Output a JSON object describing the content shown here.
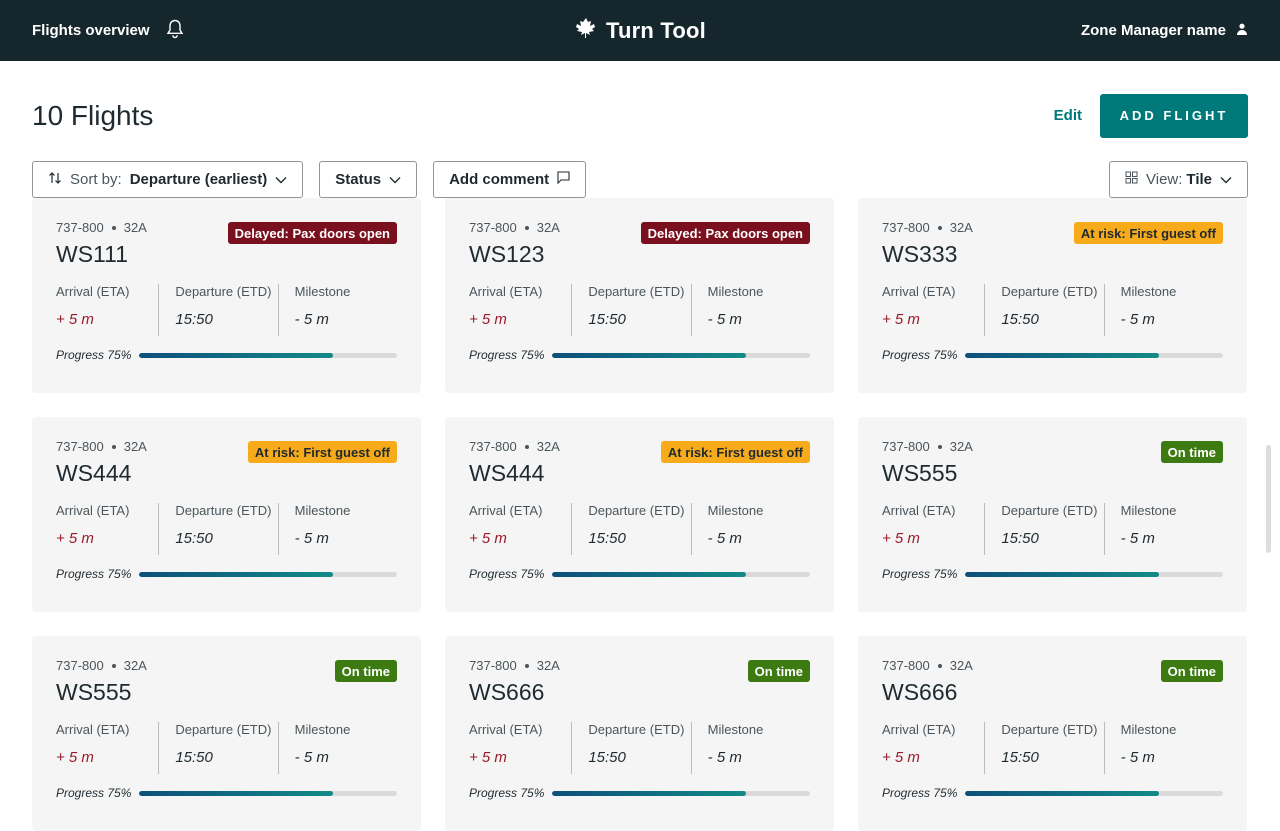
{
  "header": {
    "nav_label": "Flights overview",
    "app_title": "Turn Tool",
    "user_name": "Zone Manager name",
    "icons": {
      "notifications": "bell-icon",
      "logo": "maple-leaf-icon",
      "user": "user-icon"
    }
  },
  "page": {
    "title": "10 Flights",
    "edit_label": "Edit",
    "add_flight_label": "ADD FLIGHT"
  },
  "filters": {
    "sort_prefix": "Sort by:",
    "sort_value": "Departure (earliest)",
    "status_label": "Status",
    "comment_label": "Add comment",
    "view_prefix": "View:",
    "view_value": "Tile"
  },
  "labels": {
    "arrival": "Arrival (ETA)",
    "departure": "Departure (ETD)",
    "milestone": "Milestone"
  },
  "colors": {
    "accent": "#00797a",
    "header_bg": "#16262d",
    "delayed": "#7a0f1d",
    "at_risk": "#f7ab1a",
    "on_time": "#3d7a12"
  },
  "flights": [
    {
      "aircraft": "737-800",
      "gate": "32A",
      "flight": "WS111",
      "status": "Delayed: Pax doors open",
      "status_type": "delayed",
      "arrival": "+ 5 m",
      "departure": "15:50",
      "milestone": "- 5 m",
      "progress_label": "Progress 75%",
      "progress": 0.75
    },
    {
      "aircraft": "737-800",
      "gate": "32A",
      "flight": "WS123",
      "status": "Delayed: Pax doors open",
      "status_type": "delayed",
      "arrival": "+ 5 m",
      "departure": "15:50",
      "milestone": "- 5 m",
      "progress_label": "Progress 75%",
      "progress": 0.75
    },
    {
      "aircraft": "737-800",
      "gate": "32A",
      "flight": "WS333",
      "status": "At risk: First guest off",
      "status_type": "risk",
      "arrival": "+ 5 m",
      "departure": "15:50",
      "milestone": "- 5 m",
      "progress_label": "Progress 75%",
      "progress": 0.75
    },
    {
      "aircraft": "737-800",
      "gate": "32A",
      "flight": "WS444",
      "status": "At risk: First guest off",
      "status_type": "risk",
      "arrival": "+ 5 m",
      "departure": "15:50",
      "milestone": "- 5 m",
      "progress_label": "Progress 75%",
      "progress": 0.75
    },
    {
      "aircraft": "737-800",
      "gate": "32A",
      "flight": "WS444",
      "status": "At risk: First guest off",
      "status_type": "risk",
      "arrival": "+ 5 m",
      "departure": "15:50",
      "milestone": "- 5 m",
      "progress_label": "Progress 75%",
      "progress": 0.75
    },
    {
      "aircraft": "737-800",
      "gate": "32A",
      "flight": "WS555",
      "status": "On time",
      "status_type": "ontime",
      "arrival": "+ 5 m",
      "departure": "15:50",
      "milestone": "- 5 m",
      "progress_label": "Progress 75%",
      "progress": 0.75
    },
    {
      "aircraft": "737-800",
      "gate": "32A",
      "flight": "WS555",
      "status": "On time",
      "status_type": "ontime",
      "arrival": "+ 5 m",
      "departure": "15:50",
      "milestone": "- 5 m",
      "progress_label": "Progress 75%",
      "progress": 0.75
    },
    {
      "aircraft": "737-800",
      "gate": "32A",
      "flight": "WS666",
      "status": "On time",
      "status_type": "ontime",
      "arrival": "+ 5 m",
      "departure": "15:50",
      "milestone": "- 5 m",
      "progress_label": "Progress 75%",
      "progress": 0.75
    },
    {
      "aircraft": "737-800",
      "gate": "32A",
      "flight": "WS666",
      "status": "On time",
      "status_type": "ontime",
      "arrival": "+ 5 m",
      "departure": "15:50",
      "milestone": "- 5 m",
      "progress_label": "Progress 75%",
      "progress": 0.75
    }
  ]
}
